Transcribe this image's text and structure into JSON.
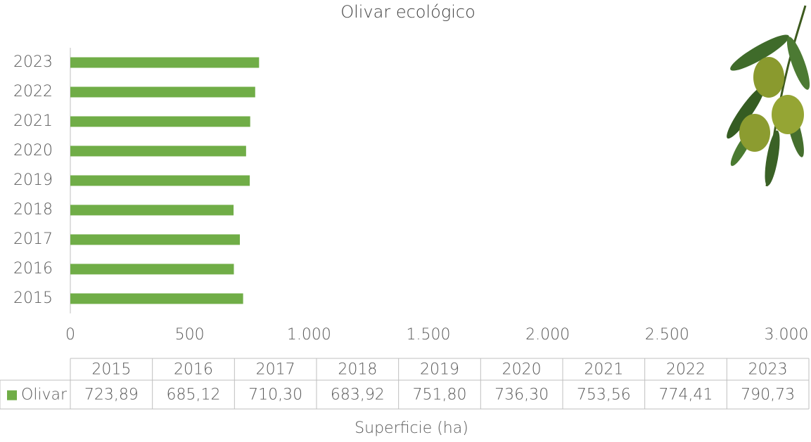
{
  "chart_data": {
    "type": "bar",
    "title": "Olivar ecológico",
    "categories": [
      "2015",
      "2016",
      "2017",
      "2018",
      "2019",
      "2020",
      "2021",
      "2022",
      "2023"
    ],
    "series": [
      {
        "name": "Olivar",
        "color": "#70ad47",
        "values": [
          723.89,
          685.12,
          710.3,
          683.92,
          751.8,
          736.3,
          753.56,
          774.41,
          790.73
        ],
        "value_labels": [
          "723,89",
          "685,12",
          "710,30",
          "683,92",
          "751,80",
          "736,30",
          "753,56",
          "774,41",
          "790,73"
        ]
      }
    ],
    "xlim": [
      0,
      3000
    ],
    "xticks": [
      0,
      500,
      {
        "value": 1000,
        "label": "1.000"
      },
      {
        "value": 1500,
        "label": "1.500"
      },
      {
        "value": 2000,
        "label": "2.000"
      },
      {
        "value": 2500,
        "label": "2.500"
      },
      {
        "value": 3000,
        "label": "3.000"
      }
    ],
    "xlabel": "Superficie (ha)",
    "grid": false,
    "data_table": true
  }
}
